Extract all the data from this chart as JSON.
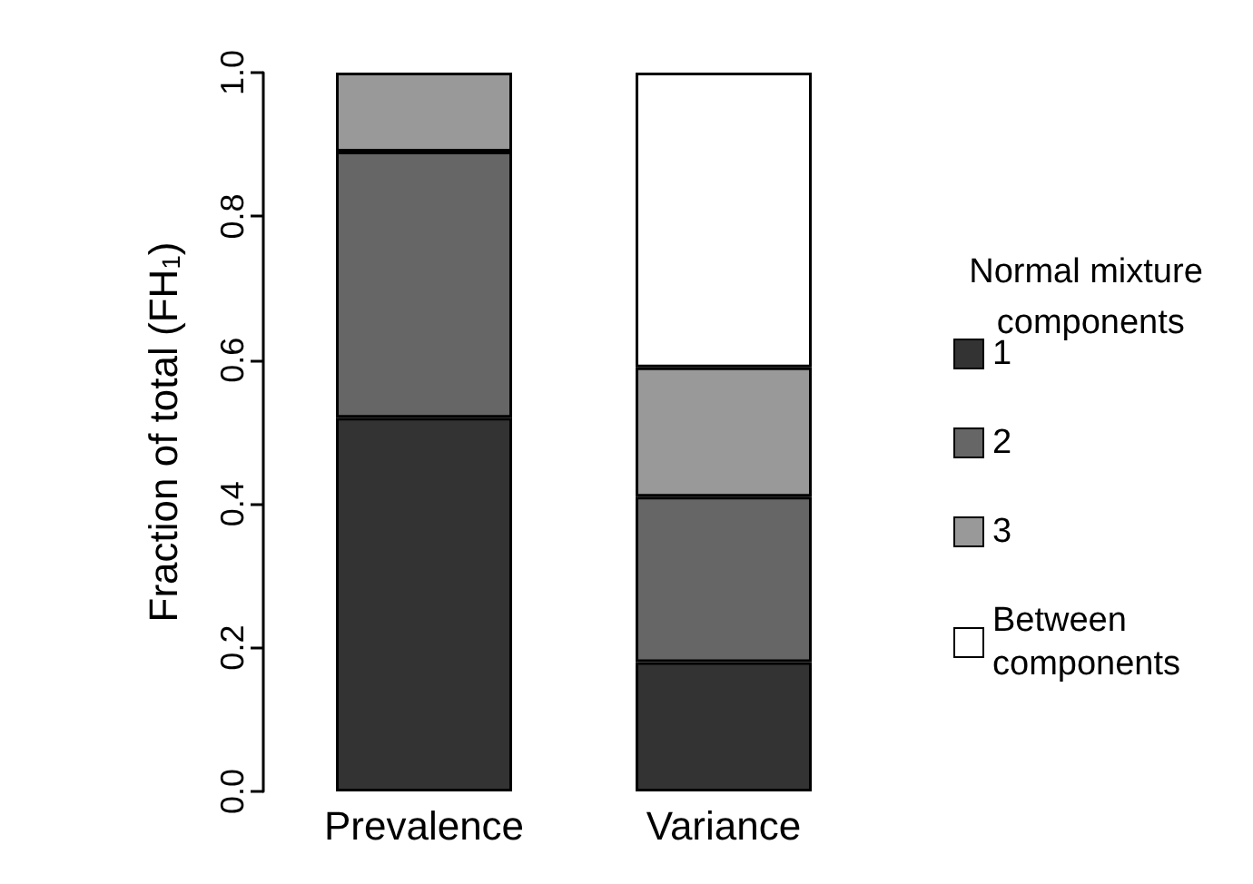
{
  "chart_data": {
    "type": "bar",
    "stacked": true,
    "categories": [
      "Prevalence",
      "Variance"
    ],
    "ylabel": "Fraction of total (FH$_{1}$)",
    "legend_title": "Normal mixture components",
    "legend": "right",
    "series": [
      {
        "name": "1",
        "color": "#333333",
        "values": [
          0.52,
          0.18
        ]
      },
      {
        "name": "2",
        "color": "#666666",
        "values": [
          0.37,
          0.23
        ]
      },
      {
        "name": "3",
        "color": "#999999",
        "values": [
          0.11,
          0.18
        ]
      },
      {
        "name": "Between components",
        "color": "#ffffff",
        "values": [
          null,
          0.41
        ]
      }
    ],
    "ylim": [
      0,
      1
    ],
    "yticks": [
      {
        "value": 0,
        "label": "0.0"
      },
      {
        "value": 0.2,
        "label": "0.2"
      },
      {
        "value": 0.4,
        "label": "0.4"
      },
      {
        "value": 0.6,
        "label": "0.6"
      },
      {
        "value": 0.8,
        "label": "0.8"
      },
      {
        "value": 1,
        "label": "1.0"
      }
    ],
    "grid": false
  }
}
